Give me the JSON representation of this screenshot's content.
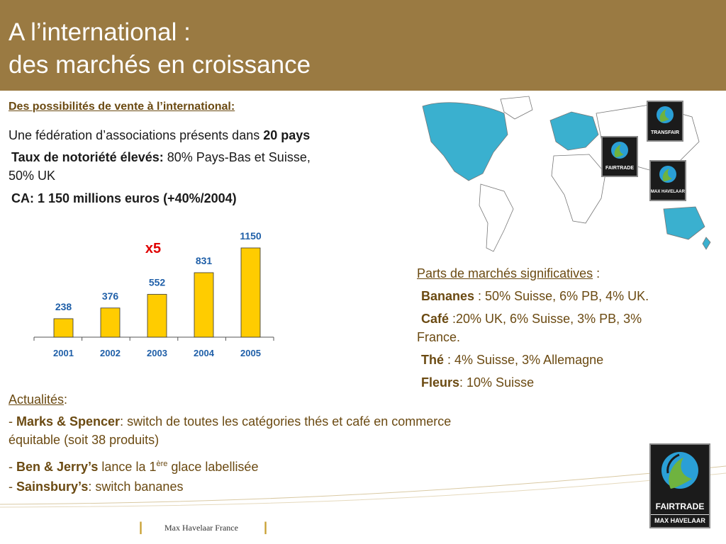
{
  "header": {
    "title_line1": "A l’international :",
    "title_line2": "des marchés en croissance"
  },
  "left": {
    "heading": "Des possibilités de vente à l’international:",
    "fed_prefix": "Une fédération d’associations présents dans ",
    "fed_bold": "20 pays",
    "notoriety_bold": "Taux de notoriété élevés:",
    "notoriety_rest": " 80% Pays-Bas et Suisse,",
    "notoriety_line2": "50% UK",
    "ca": "CA: 1 150 millions euros (+40%/2004)"
  },
  "chart_data": {
    "type": "bar",
    "categories": [
      "2001",
      "2002",
      "2003",
      "2004",
      "2005"
    ],
    "values": [
      238,
      376,
      552,
      831,
      1150
    ],
    "annotation": "x5",
    "bar_color": "#ffcc00"
  },
  "markets": {
    "heading": "Parts de marchés significatives",
    "heading_suffix": " :",
    "bananes_label": "Bananes",
    "bananes_text": " : 50% Suisse, 6% PB, 4% UK.",
    "cafe_label": "Café",
    "cafe_text": " :20% UK, 6% Suisse, 3% PB, 3%",
    "cafe_text2": "France.",
    "the_label": "Thé",
    "the_text": " : 4% Suisse, 3% Allemagne",
    "fleurs_label": "Fleurs",
    "fleurs_text": ": 10% Suisse"
  },
  "news": {
    "heading": "Actualités",
    "heading_suffix": ":",
    "ms_dash": "- ",
    "ms_label": "Marks & Spencer",
    "ms_text": ": switch de toutes les catégories thés et café en commerce",
    "ms_text2": "équitable (soit 38 produits)",
    "bj_dash": "- ",
    "bj_label": "Ben & Jerry’s",
    "bj_text": " lance la 1",
    "bj_sup": "ère",
    "bj_text2": " glace labellisée",
    "sb_dash": "- ",
    "sb_label": "Sainsbury’s",
    "sb_text": ": switch bananes"
  },
  "logos": {
    "transfair": "TRANSFAIR",
    "fairtrade": "FAIRTRADE",
    "maxhavelaar": "MAX HAVELAAR",
    "big_line1": "FAIRTRADE",
    "big_line2": "MAX HAVELAAR"
  },
  "footer": {
    "text": "Max Havelaar France",
    "bar": "|"
  },
  "colors": {
    "header": "#9a7a42",
    "chart_labels": "#1f5fa8",
    "annotation": "#e00000",
    "map_highlight": "#3ab0cf"
  }
}
